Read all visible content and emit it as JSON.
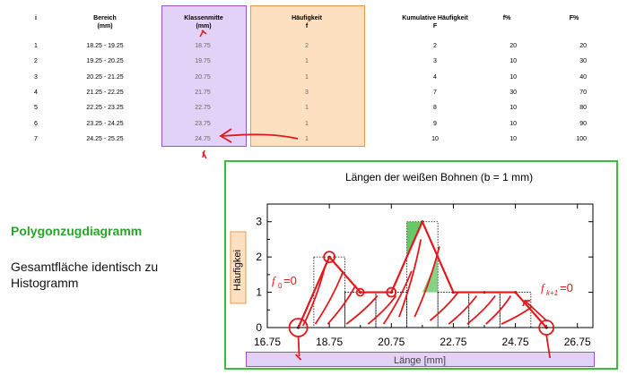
{
  "table": {
    "headers": {
      "i": "i",
      "bereich": [
        "Bereich",
        "(mm)"
      ],
      "klassenmitte": [
        "Klassenmitte",
        "(mm)"
      ],
      "haeufigkeit": [
        "Häufigkeit",
        "f"
      ],
      "kumulativ": [
        "Kumulative Häufigkeit",
        "F"
      ],
      "fpct": "f%",
      "Fpct": "F%"
    },
    "rows": [
      {
        "i": "1",
        "bereich": "18.25 - 19.25",
        "mitte": "18.75",
        "f": "2",
        "F": "2",
        "fp": "20",
        "Fp": "20"
      },
      {
        "i": "2",
        "bereich": "19.25 - 20.25",
        "mitte": "19.75",
        "f": "1",
        "F": "3",
        "fp": "10",
        "Fp": "30"
      },
      {
        "i": "3",
        "bereich": "20.25 - 21.25",
        "mitte": "20.75",
        "f": "1",
        "F": "4",
        "fp": "10",
        "Fp": "40"
      },
      {
        "i": "4",
        "bereich": "21.25 - 22.25",
        "mitte": "21.75",
        "f": "3",
        "F": "7",
        "fp": "30",
        "Fp": "70"
      },
      {
        "i": "5",
        "bereich": "22.25 - 23.25",
        "mitte": "22.75",
        "f": "1",
        "F": "8",
        "fp": "10",
        "Fp": "80"
      },
      {
        "i": "6",
        "bereich": "23.25 - 24.25",
        "mitte": "23.75",
        "f": "1",
        "F": "9",
        "fp": "10",
        "Fp": "90"
      },
      {
        "i": "7",
        "bereich": "24.25 - 25.25",
        "mitte": "24.75",
        "f": "1",
        "F": "10",
        "fp": "10",
        "Fp": "100"
      }
    ]
  },
  "left_panel": {
    "title": "Polygonzugdiagramm",
    "text": "Gesamtfläche identisch zu Histogramm"
  },
  "annotations": {
    "f0": "f",
    "f0_sub": "0",
    "f0_eq": "=0",
    "fk1": "f",
    "fk1_sub": "k+1",
    "fk1_eq": "=0"
  },
  "colors": {
    "purple_fill": "#e3d2f7",
    "orange_fill": "#fce0bf",
    "green_border": "#3bbd3b",
    "green_title": "#2aa52a",
    "annotation_red": "#e0191c"
  },
  "chart_data": {
    "type": "line",
    "title": "Längen der weißen Bohnen (b = 1 mm)",
    "xlabel": "Länge [mm]",
    "ylabel": "Häufigkei",
    "x": [
      17.75,
      18.75,
      19.75,
      20.75,
      21.75,
      22.75,
      23.75,
      24.75,
      25.75
    ],
    "y": [
      0,
      2,
      1,
      1,
      3,
      1,
      1,
      1,
      0
    ],
    "histogram": {
      "bins": [
        [
          18.25,
          19.25
        ],
        [
          19.25,
          20.25
        ],
        [
          20.25,
          21.25
        ],
        [
          21.25,
          22.25
        ],
        [
          22.25,
          23.25
        ],
        [
          23.25,
          24.25
        ],
        [
          24.25,
          25.25
        ]
      ],
      "values": [
        2,
        1,
        1,
        3,
        1,
        1,
        1
      ]
    },
    "xticks": [
      "16.75",
      "18.75",
      "20.75",
      "22.75",
      "24.75",
      "26.75"
    ],
    "yticks": [
      "0",
      "1",
      "2",
      "3"
    ],
    "xlim": [
      16.75,
      27.25
    ],
    "ylim": [
      0,
      3.5
    ]
  }
}
